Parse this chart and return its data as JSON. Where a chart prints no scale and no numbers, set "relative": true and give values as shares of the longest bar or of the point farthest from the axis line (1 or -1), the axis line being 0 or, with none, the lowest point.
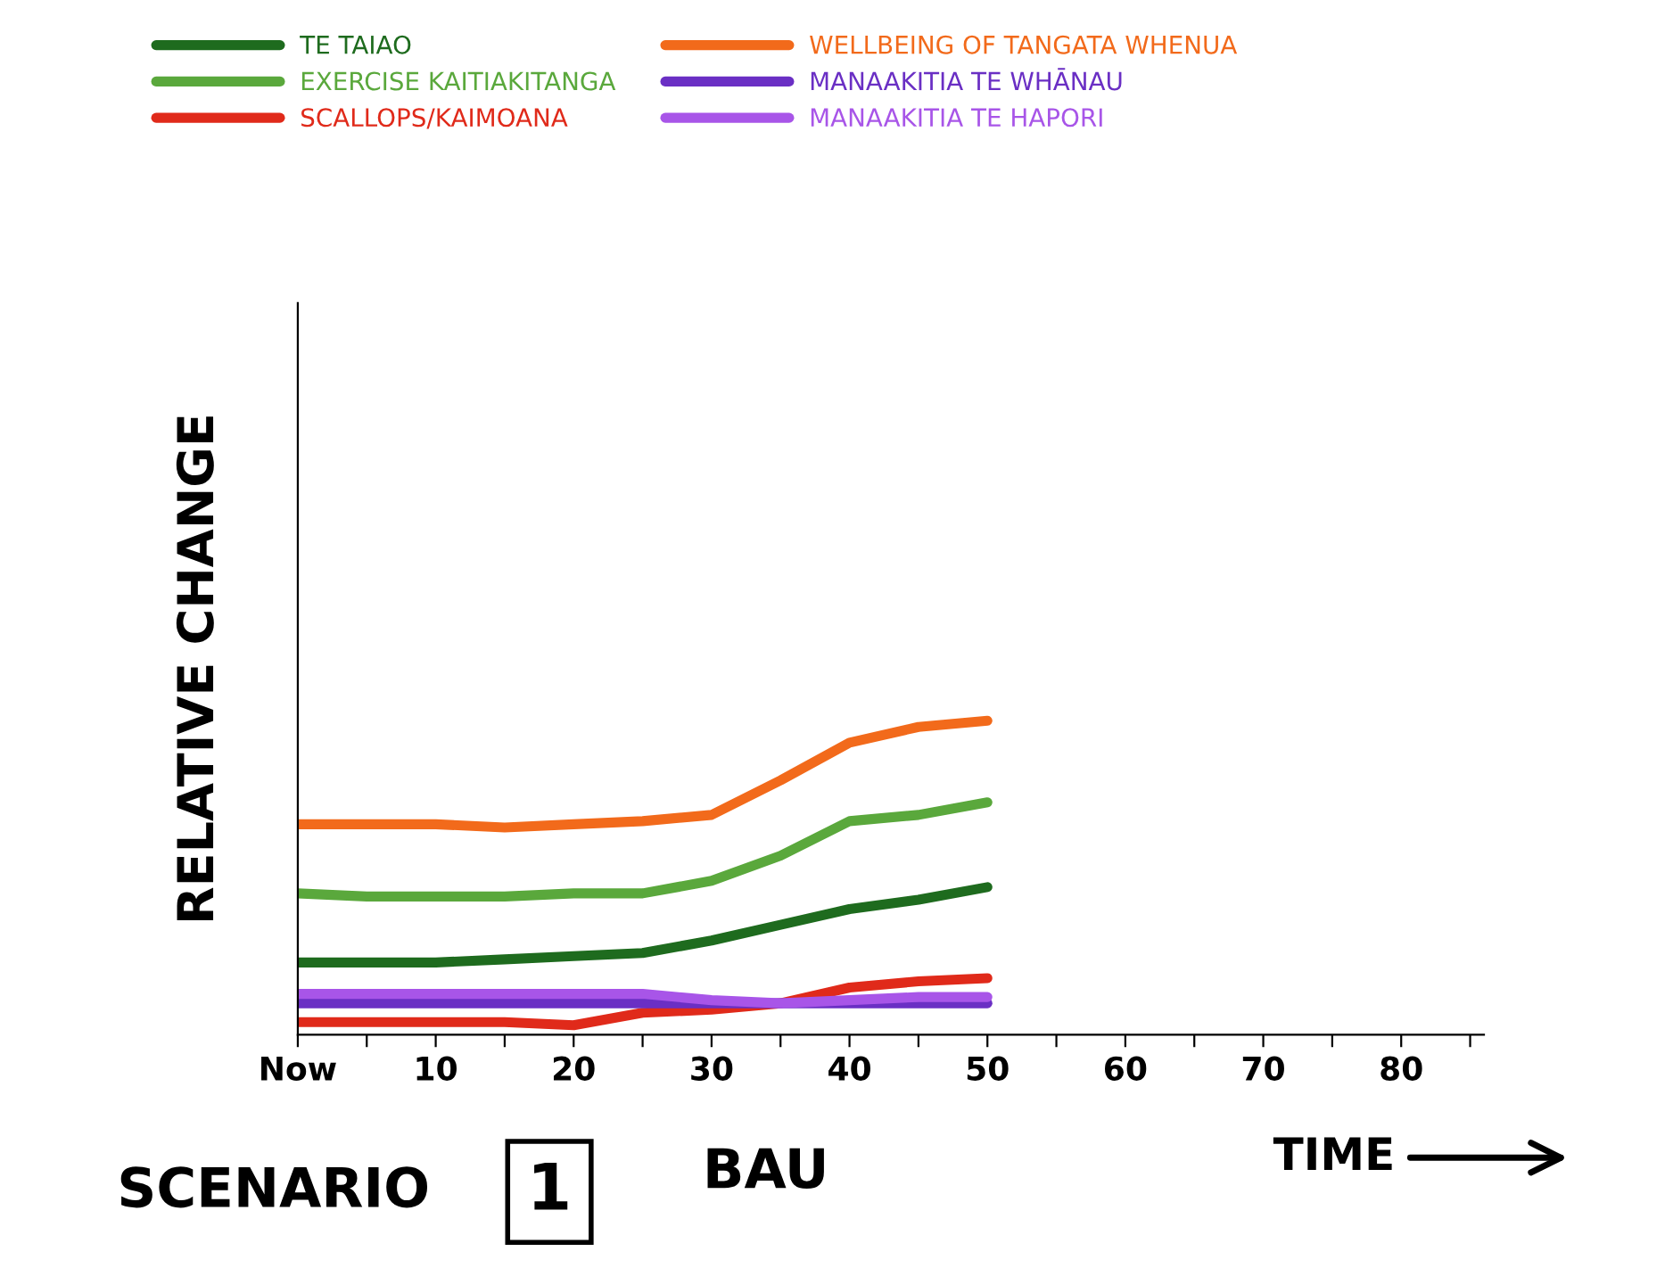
{
  "chart_data": {
    "type": "line",
    "relative": true,
    "xlabel": "TIME",
    "ylabel": "RELATIVE CHANGE",
    "annotations": [
      "SCENARIO",
      "1",
      "BAU"
    ],
    "x": [
      0,
      5,
      10,
      15,
      20,
      25,
      30,
      35,
      40,
      45,
      50
    ],
    "xlim": [
      0,
      86
    ],
    "xticks": [
      {
        "value": 0,
        "label": "Now"
      },
      {
        "value": 5,
        "label": null
      },
      10,
      {
        "value": 15,
        "label": null
      },
      20,
      {
        "value": 25,
        "label": null
      },
      30,
      {
        "value": 35,
        "label": null
      },
      40,
      {
        "value": 45,
        "label": null
      },
      50,
      {
        "value": 55,
        "label": null
      },
      60,
      {
        "value": 65,
        "label": null
      },
      70,
      {
        "value": 75,
        "label": null
      },
      80,
      {
        "value": 85,
        "label": null
      }
    ],
    "tick_labels": "x",
    "grid": false,
    "legend": "top left",
    "line_style": "solid",
    "series": [
      {
        "name": "TE TAIAO",
        "color": "#1e6b1e",
        "values": [
          0.23,
          0.23,
          0.23,
          0.24,
          0.25,
          0.26,
          0.3,
          0.35,
          0.4,
          0.43,
          0.47
        ]
      },
      {
        "name": "EXERCISE KAITIAKITANGA",
        "color": "#5aa83c",
        "values": [
          0.45,
          0.44,
          0.44,
          0.44,
          0.45,
          0.45,
          0.49,
          0.57,
          0.68,
          0.7,
          0.74
        ]
      },
      {
        "name": "SCALLOPS/KAIMOANA",
        "color": "#e02a1a",
        "values": [
          0.04,
          0.04,
          0.04,
          0.04,
          0.03,
          0.07,
          0.08,
          0.1,
          0.15,
          0.17,
          0.18
        ]
      },
      {
        "name": "WELLBEING OF TANGATA WHENUA",
        "color": "#f26a1b",
        "values": [
          0.67,
          0.67,
          0.67,
          0.66,
          0.67,
          0.68,
          0.7,
          0.81,
          0.93,
          0.98,
          1.0
        ]
      },
      {
        "name": "MANAAKITIA TE WHĀNAU",
        "color": "#6a2fc4",
        "values": [
          0.1,
          0.1,
          0.1,
          0.1,
          0.1,
          0.1,
          0.1,
          0.1,
          0.1,
          0.1,
          0.1
        ]
      },
      {
        "name": "MANAAKITIA TE HAPORI",
        "color": "#a855e8",
        "values": [
          0.13,
          0.13,
          0.13,
          0.13,
          0.13,
          0.13,
          0.11,
          0.1,
          0.11,
          0.12,
          0.12
        ]
      }
    ]
  }
}
